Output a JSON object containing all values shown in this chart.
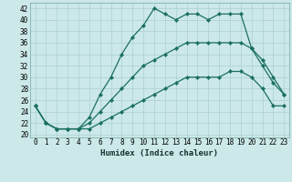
{
  "xlabel": "Humidex (Indice chaleur)",
  "ylabel": "",
  "bg_color": "#cce8e8",
  "line_color": "#1a7060",
  "grid_color": "#aad0d0",
  "xlim": [
    -0.5,
    23.5
  ],
  "ylim": [
    19.5,
    43
  ],
  "yticks": [
    20,
    22,
    24,
    26,
    28,
    30,
    32,
    34,
    36,
    38,
    40,
    42
  ],
  "xticks": [
    0,
    1,
    2,
    3,
    4,
    5,
    6,
    7,
    8,
    9,
    10,
    11,
    12,
    13,
    14,
    15,
    16,
    17,
    18,
    19,
    20,
    21,
    22,
    23
  ],
  "series": [
    [
      25,
      22,
      21,
      21,
      21,
      21,
      22,
      23,
      24,
      25,
      26,
      27,
      28,
      29,
      30,
      30,
      30,
      30,
      31,
      31,
      30,
      28,
      25,
      25
    ],
    [
      25,
      22,
      21,
      21,
      21,
      23,
      27,
      30,
      34,
      37,
      39,
      42,
      41,
      40,
      41,
      41,
      40,
      41,
      41,
      41,
      35,
      32,
      29,
      27
    ],
    [
      25,
      22,
      21,
      21,
      21,
      22,
      24,
      26,
      28,
      30,
      32,
      33,
      34,
      35,
      36,
      36,
      36,
      36,
      36,
      36,
      35,
      33,
      30,
      27
    ]
  ],
  "xlabel_fontsize": 6.5,
  "tick_fontsize": 5.5,
  "marker_size": 2.2,
  "linewidth": 0.9
}
